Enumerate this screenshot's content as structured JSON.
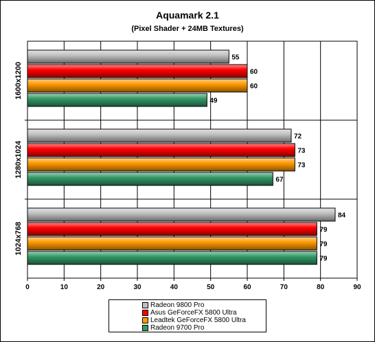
{
  "chart_data": {
    "type": "bar",
    "orientation": "horizontal",
    "title": "Aquamark 2.1",
    "subtitle": "(Pixel Shader + 24MB Textures)",
    "categories": [
      "1600x1200",
      "1280x1024",
      "1024x768"
    ],
    "series": [
      {
        "name": "Radeon 9800 Pro",
        "color": "#c0c0c0",
        "values": [
          55,
          72,
          84
        ]
      },
      {
        "name": "Asus GeForceFX 5800 Ultra",
        "color": "#ff0000",
        "values": [
          60,
          73,
          79
        ]
      },
      {
        "name": "Leadtek GeForceFX 5800 Ultra",
        "color": "#ff9900",
        "values": [
          60,
          73,
          79
        ]
      },
      {
        "name": "Radeon 9700 Pro",
        "color": "#339966",
        "values": [
          49,
          67,
          79
        ]
      }
    ],
    "data_labels": [
      [
        "55",
        "72",
        "84"
      ],
      [
        "60",
        "73",
        "79"
      ],
      [
        "60",
        "73",
        "79"
      ],
      [
        "49",
        "67",
        "79"
      ]
    ],
    "xlim": [
      0,
      90
    ],
    "xticks": [
      "0",
      "10",
      "20",
      "30",
      "40",
      "50",
      "60",
      "70",
      "80",
      "90"
    ],
    "grid": true,
    "legend_position": "bottom"
  }
}
